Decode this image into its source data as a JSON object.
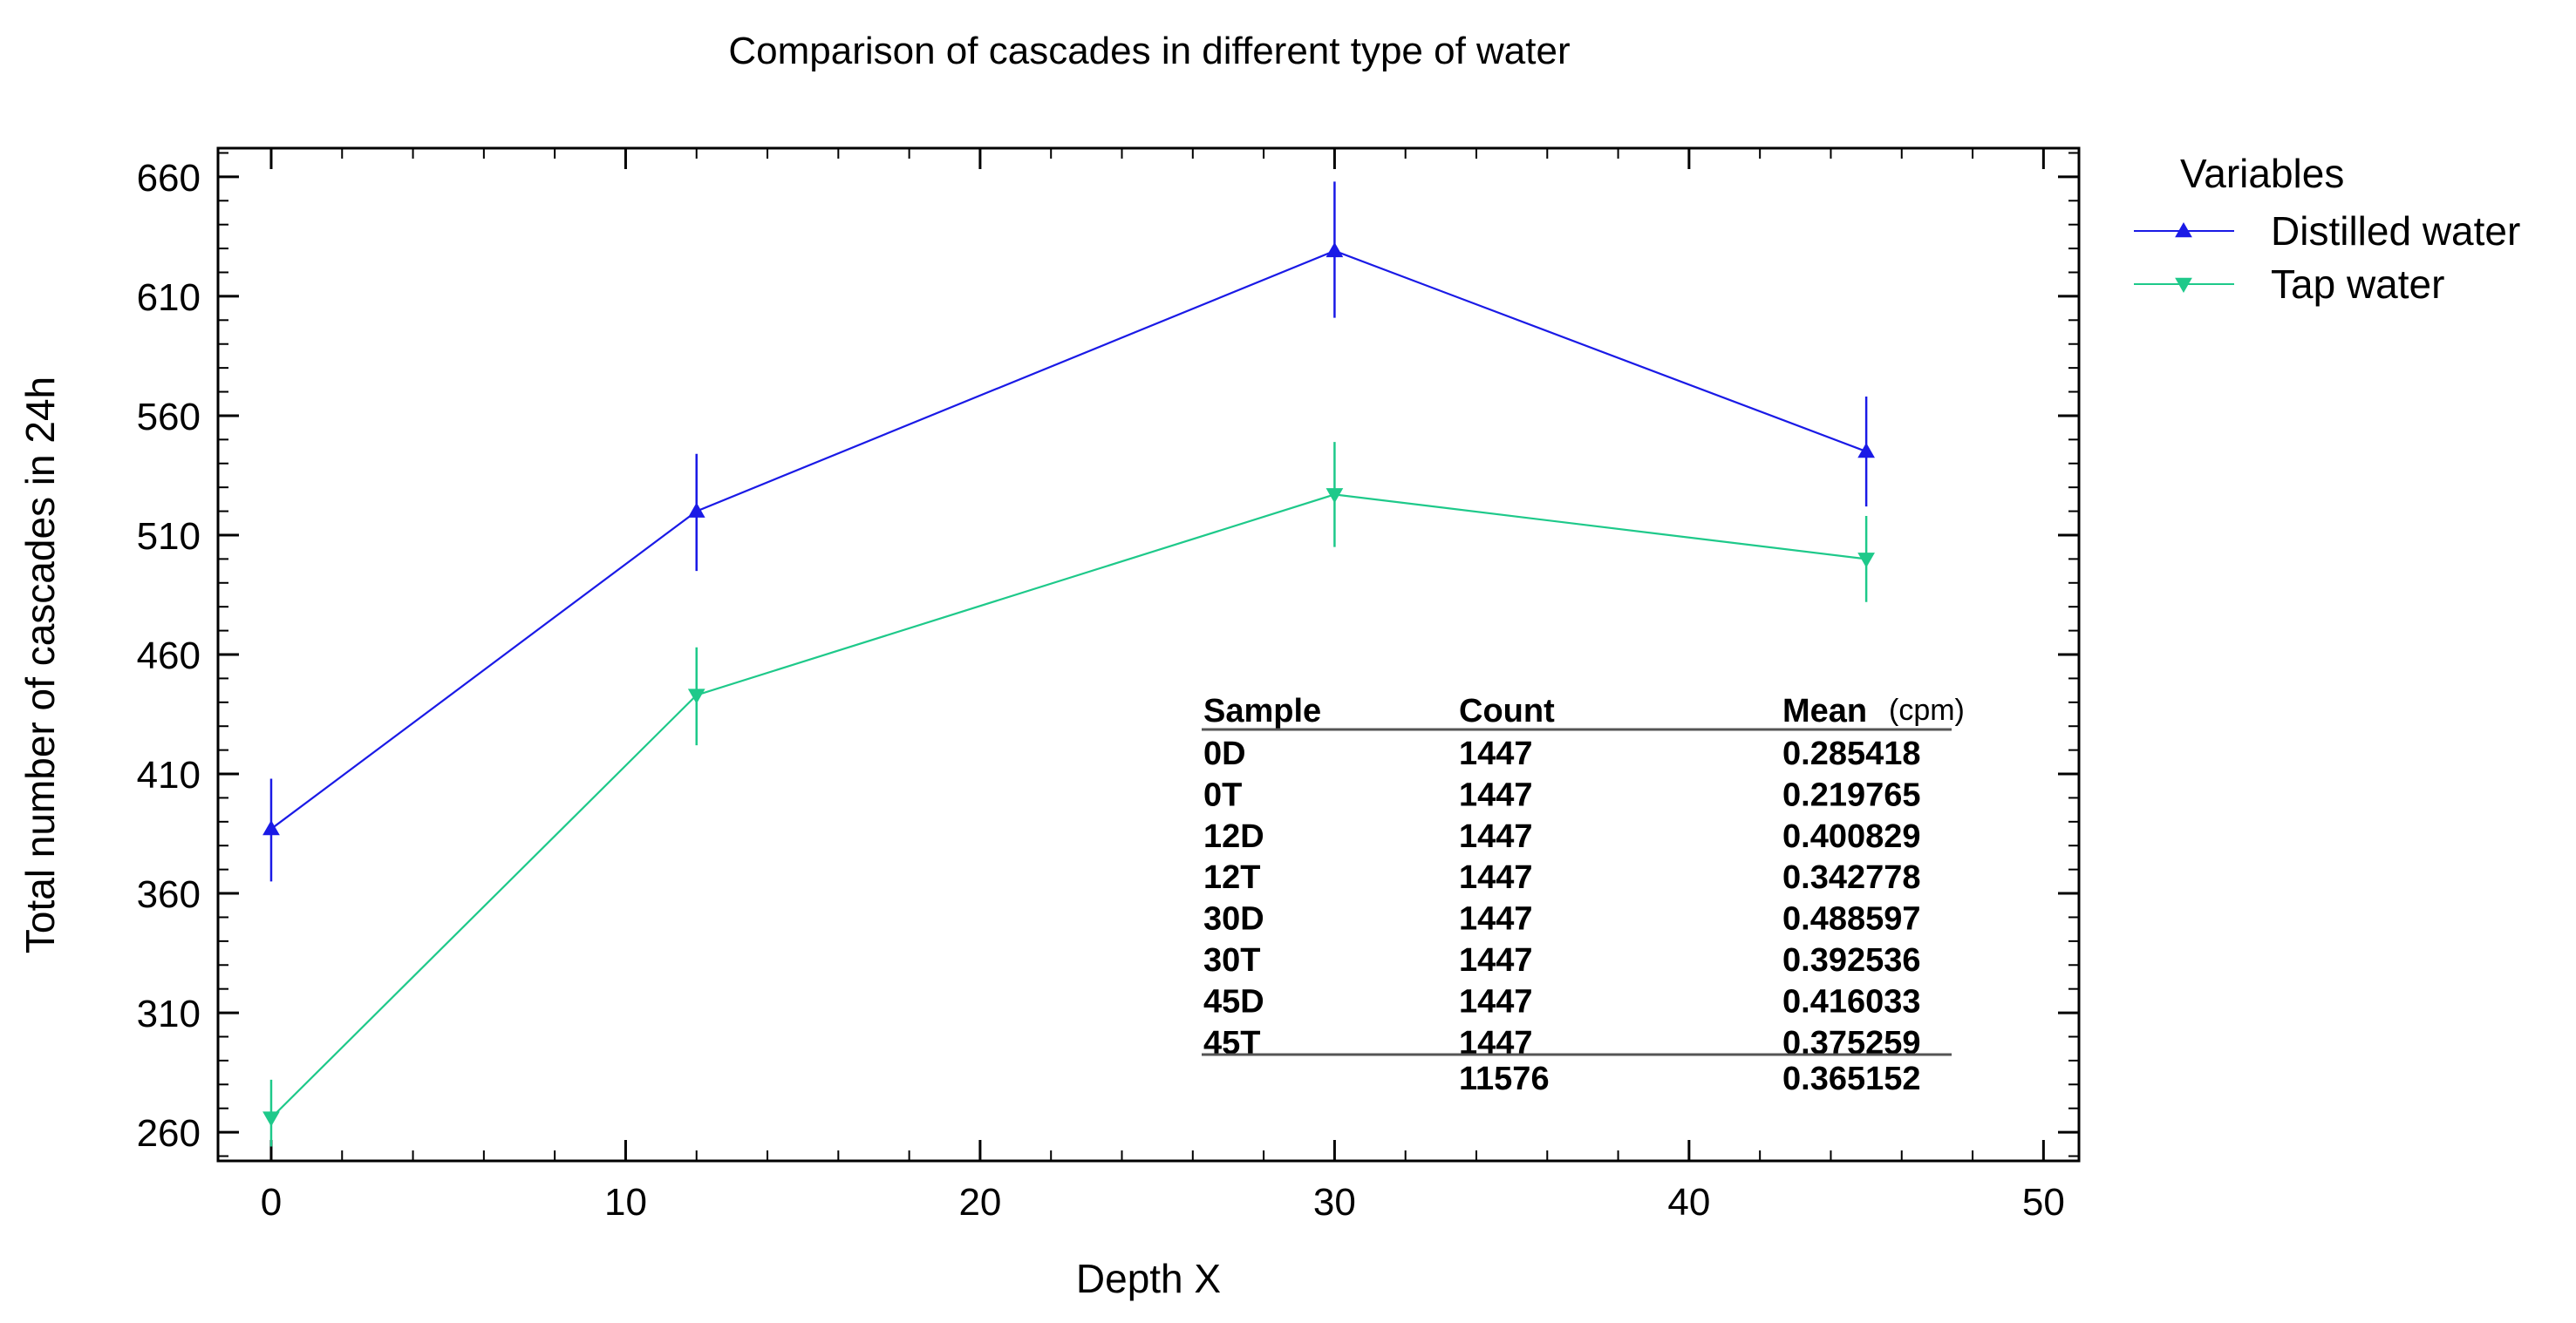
{
  "chart_data": {
    "type": "line",
    "title": "Comparison of cascades in different type of water",
    "xlabel": "Depth X",
    "ylabel": "Total number of cascades in 24h",
    "xlim": [
      -1.5,
      51
    ],
    "ylim": [
      248,
      672
    ],
    "xticks": [
      0,
      10,
      20,
      30,
      40,
      50
    ],
    "yticks": [
      260,
      310,
      360,
      410,
      460,
      510,
      560,
      610,
      660
    ],
    "legend": {
      "title": "Variables",
      "position": "outside-right"
    },
    "series": [
      {
        "name": "Distilled water",
        "color": "#1a1ae6",
        "marker": "triangle-up",
        "x": [
          0,
          12,
          30,
          45
        ],
        "y": [
          387,
          520,
          629,
          545
        ],
        "err_low": [
          365,
          495,
          601,
          522
        ],
        "err_high": [
          408,
          544,
          658,
          568
        ]
      },
      {
        "name": "Tap water",
        "color": "#1ec98a",
        "marker": "triangle-down",
        "x": [
          0,
          12,
          30,
          45
        ],
        "y": [
          266,
          443,
          527,
          500
        ],
        "err_low": [
          254,
          422,
          505,
          482
        ],
        "err_high": [
          282,
          463,
          549,
          518
        ]
      }
    ],
    "summary_table": {
      "headers": [
        "Sample",
        "Count",
        "Mean",
        "(cpm)"
      ],
      "rows": [
        [
          "0D",
          "1447",
          "0.285418"
        ],
        [
          "0T",
          "1447",
          "0.219765"
        ],
        [
          "12D",
          "1447",
          "0.400829"
        ],
        [
          "12T",
          "1447",
          "0.342778"
        ],
        [
          "30D",
          "1447",
          "0.488597"
        ],
        [
          "30T",
          "1447",
          "0.392536"
        ],
        [
          "45D",
          "1447",
          "0.416033"
        ],
        [
          "45T",
          "1447",
          "0.375259"
        ]
      ],
      "total": [
        "",
        "11576",
        "0.365152"
      ]
    }
  }
}
